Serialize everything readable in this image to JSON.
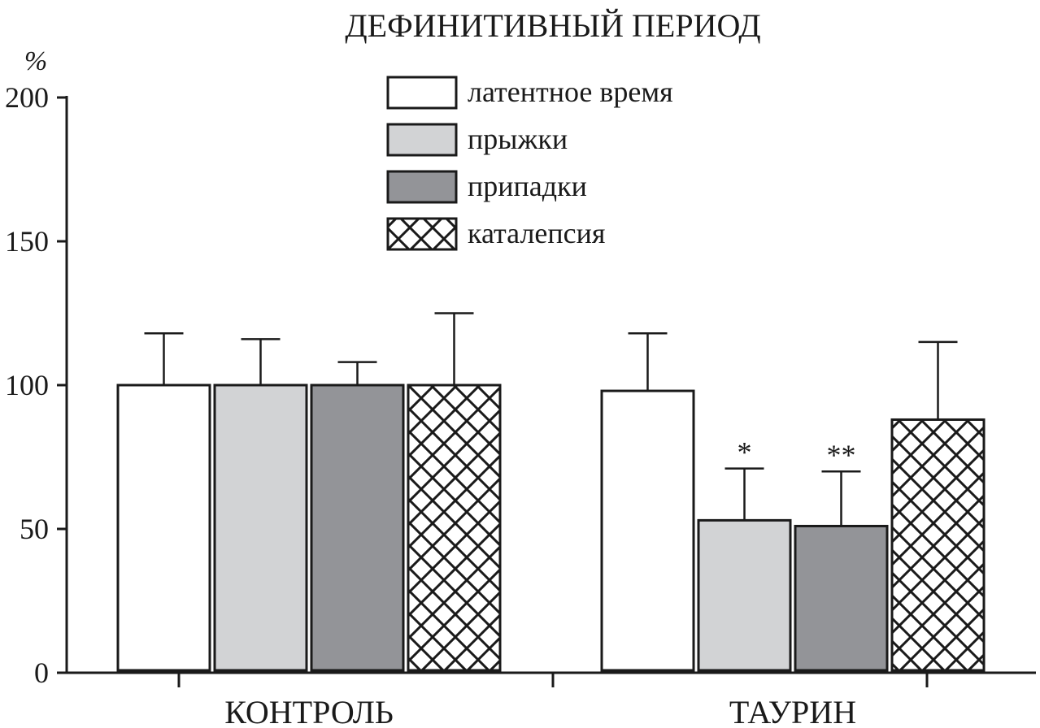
{
  "chart_data": {
    "type": "bar",
    "title": "ДЕФИНИТИВНЫЙ ПЕРИОД",
    "ylabel": "%",
    "xlabel": "",
    "ylim": [
      0,
      200
    ],
    "yticks": [
      0,
      50,
      100,
      150,
      200
    ],
    "grid": false,
    "legend_position": "top-center",
    "categories": [
      "КОНТРОЛЬ",
      "ТАУРИН"
    ],
    "series": [
      {
        "name": "латентное время",
        "fill": "#ffffff",
        "pattern": "none",
        "values": [
          100,
          98
        ],
        "errors": [
          18,
          20
        ],
        "annotations": [
          "",
          ""
        ]
      },
      {
        "name": "прыжки",
        "fill": "#d2d3d5",
        "pattern": "none",
        "values": [
          100,
          53
        ],
        "errors": [
          16,
          18
        ],
        "annotations": [
          "",
          "*"
        ]
      },
      {
        "name": "припадки",
        "fill": "#939498",
        "pattern": "none",
        "values": [
          100,
          51
        ],
        "errors": [
          8,
          19
        ],
        "annotations": [
          "",
          "**"
        ]
      },
      {
        "name": "каталепсия",
        "fill": "#ffffff",
        "pattern": "crosshatch",
        "values": [
          100,
          88
        ],
        "errors": [
          25,
          27
        ],
        "annotations": [
          "",
          ""
        ]
      }
    ]
  }
}
